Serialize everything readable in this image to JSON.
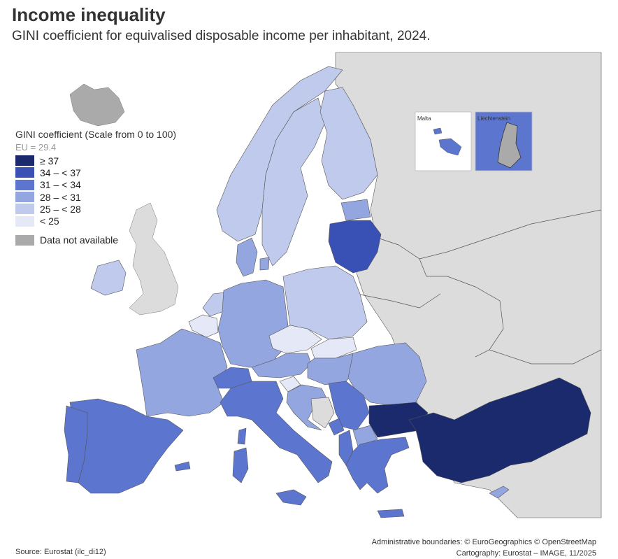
{
  "title": "Income inequality",
  "subtitle": "GINI coefficient for equivalised disposable income per inhabitant, 2024.",
  "legend": {
    "title": "GINI coefficient (Scale from 0 to 100)",
    "eu": "EU = 29.4",
    "classes": [
      {
        "label": "≥ 37",
        "color": "#1a2a6c"
      },
      {
        "label": "34 – < 37",
        "color": "#3950b4"
      },
      {
        "label": "31 – < 34",
        "color": "#5c76d0"
      },
      {
        "label": "28 – < 31",
        "color": "#93a6e0"
      },
      {
        "label": "25 – < 28",
        "color": "#bfcaec"
      },
      {
        "label": "< 25",
        "color": "#e5e8f6"
      }
    ],
    "na_label": "Data not available",
    "na_color": "#aaaaaa"
  },
  "insets": {
    "malta": "Malta",
    "liechtenstein": "Liechtenstein"
  },
  "colors": {
    "non_eu": "#dcdcdc",
    "sea": "#ffffff",
    "border": "#333333"
  },
  "source": "Source: Eurostat (ilc_di12)",
  "credits": {
    "line1": "Administrative boundaries: © EuroGeographics © OpenStreetMap",
    "line2": "Cartography: Eurostat – IMAGE, 11/2025"
  }
}
